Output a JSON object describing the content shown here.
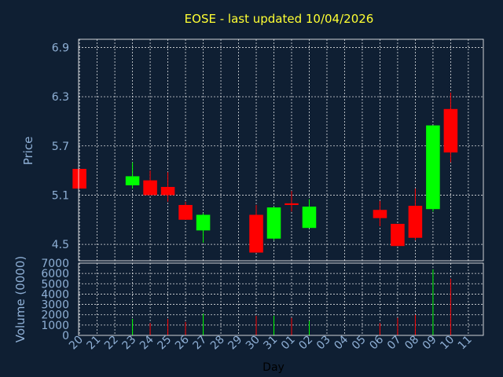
{
  "chart_data": {
    "type": "candlestick",
    "title": "EOSE - last updated 10/04/2026",
    "xlabel": "Day",
    "ylabel": "Price",
    "volume_label": "Volume (0000)",
    "x": [
      "20",
      "21",
      "22",
      "23",
      "24",
      "25",
      "26",
      "27",
      "28",
      "29",
      "30",
      "31",
      "01",
      "02",
      "03",
      "04",
      "05",
      "06",
      "07",
      "08",
      "09",
      "10",
      "11"
    ],
    "price_ticks": [
      "4.5",
      "5.1",
      "5.7",
      "6.3",
      "6.9"
    ],
    "volume_ticks": [
      "0",
      "1000",
      "2000",
      "3000",
      "4000",
      "5000",
      "6000",
      "7000"
    ],
    "price_range": [
      4.3,
      7.0
    ],
    "volume_range": [
      0,
      7000
    ],
    "up_color": "#00ff00",
    "down_color": "#ff0000",
    "candles": [
      {
        "day": "20",
        "open": 5.42,
        "close": 5.18,
        "high": 5.42,
        "low": 5.18,
        "volume": 0
      },
      {
        "day": "23",
        "open": 5.22,
        "close": 5.33,
        "high": 5.5,
        "low": 5.18,
        "volume": 1600
      },
      {
        "day": "24",
        "open": 5.28,
        "close": 5.1,
        "high": 5.4,
        "low": 5.1,
        "volume": 1200
      },
      {
        "day": "25",
        "open": 5.2,
        "close": 5.1,
        "high": 5.38,
        "low": 5.02,
        "volume": 1600
      },
      {
        "day": "26",
        "open": 4.98,
        "close": 4.8,
        "high": 5.02,
        "low": 4.8,
        "volume": 1300
      },
      {
        "day": "27",
        "open": 4.67,
        "close": 4.86,
        "high": 4.88,
        "low": 4.52,
        "volume": 2100
      },
      {
        "day": "30",
        "open": 4.86,
        "close": 4.4,
        "high": 4.98,
        "low": 4.4,
        "volume": 1900
      },
      {
        "day": "31",
        "open": 4.57,
        "close": 4.95,
        "high": 4.96,
        "low": 4.55,
        "volume": 1900
      },
      {
        "day": "01",
        "open": 5.0,
        "close": 4.98,
        "high": 5.15,
        "low": 4.9,
        "volume": 1700
      },
      {
        "day": "02",
        "open": 4.7,
        "close": 4.96,
        "high": 5.05,
        "low": 4.7,
        "volume": 1400
      },
      {
        "day": "06",
        "open": 4.92,
        "close": 4.82,
        "high": 5.03,
        "low": 4.72,
        "volume": 1200
      },
      {
        "day": "07",
        "open": 4.75,
        "close": 4.48,
        "high": 4.75,
        "low": 4.48,
        "volume": 1700
      },
      {
        "day": "08",
        "open": 4.97,
        "close": 4.58,
        "high": 5.18,
        "low": 4.55,
        "volume": 2000
      },
      {
        "day": "09",
        "open": 4.93,
        "close": 5.95,
        "high": 5.95,
        "low": 4.9,
        "volume": 6400
      },
      {
        "day": "10",
        "open": 6.15,
        "close": 5.62,
        "high": 6.35,
        "low": 5.5,
        "volume": 5500
      }
    ]
  }
}
